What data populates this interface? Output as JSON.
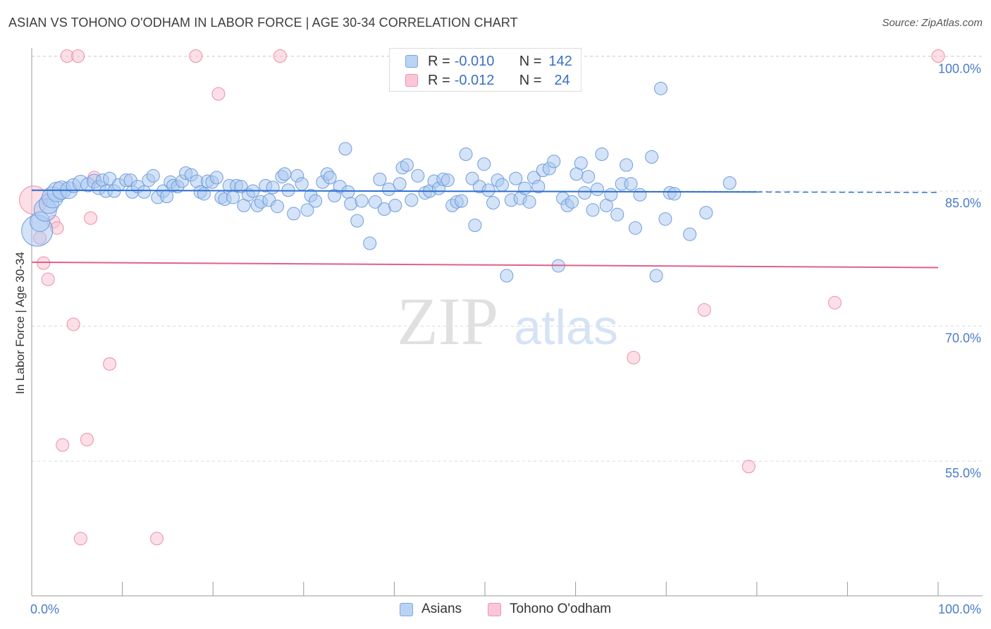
{
  "title": "ASIAN VS TOHONO O'ODHAM IN LABOR FORCE | AGE 30-34 CORRELATION CHART",
  "source": "Source: ZipAtlas.com",
  "watermark": {
    "zip": "ZIP",
    "atlas": "atlas"
  },
  "legend": [
    {
      "name": "Asians",
      "r_label": "R =",
      "r_value": "-0.010",
      "n_label": "N =",
      "n_value": "142",
      "fill": "#b9d3f5",
      "stroke": "#7aa6e0"
    },
    {
      "name": "Tohono O'odham",
      "r_label": "R =",
      "r_value": "-0.012",
      "n_label": "N =",
      "n_value": "24",
      "fill": "#fbc7d6",
      "stroke": "#ec93ae"
    }
  ],
  "colors": {
    "asian_fill": "#a9c8f0",
    "asian_stroke": "#6f9edc",
    "asian_line": "#2f6fd0",
    "tohono_fill": "#f9c4d3",
    "tohono_stroke": "#ea8fab",
    "tohono_line": "#e0608a",
    "axis_text": "#4a7cc9",
    "grid": "#d8d8d8"
  },
  "chart_data": {
    "type": "scatter",
    "title": "ASIAN VS TOHONO O'ODHAM IN LABOR FORCE | AGE 30-34 CORRELATION CHART",
    "xlabel": "",
    "ylabel": "In Labor Force | Age 30-34",
    "xlim": [
      0,
      100
    ],
    "ylim": [
      40,
      101.5
    ],
    "x_tick_labels": [
      {
        "value": 0,
        "label": "0.0%"
      },
      {
        "value": 100,
        "label": "100.0%"
      }
    ],
    "y_ticks": [
      {
        "value": 100,
        "label": "100.0%"
      },
      {
        "value": 85,
        "label": "85.0%"
      },
      {
        "value": 70,
        "label": "70.0%"
      },
      {
        "value": 55,
        "label": "55.0%"
      }
    ],
    "series": [
      {
        "name": "Asians",
        "trend": {
          "x": [
            0,
            80
          ],
          "y": [
            85.1,
            84.9
          ],
          "dashed_to": 100
        },
        "points": [
          [
            0.6,
            80.6,
            22
          ],
          [
            0.9,
            81.6,
            14
          ],
          [
            1.5,
            82.9,
            16
          ],
          [
            1.9,
            83.6,
            14
          ],
          [
            2.3,
            84.3,
            15
          ],
          [
            2.8,
            84.9,
            14
          ],
          [
            3.3,
            85.1,
            13
          ],
          [
            4.1,
            85.1,
            12
          ],
          [
            4.6,
            85.6,
            10
          ],
          [
            5.4,
            85.9,
            11
          ],
          [
            6.2,
            85.7,
            10
          ],
          [
            6.9,
            86.1,
            10
          ],
          [
            7.4,
            85.4,
            10
          ],
          [
            7.8,
            86.2,
            9
          ],
          [
            8.2,
            85.0,
            9
          ],
          [
            8.6,
            86.4,
            9
          ],
          [
            9.1,
            85.0,
            9
          ],
          [
            9.6,
            85.7,
            9
          ],
          [
            10.4,
            86.2,
            9
          ],
          [
            10.9,
            86.2,
            9
          ],
          [
            11.1,
            84.9,
            9
          ],
          [
            11.7,
            85.5,
            9
          ],
          [
            12.4,
            84.9,
            9
          ],
          [
            12.9,
            86.2,
            9
          ],
          [
            13.4,
            86.7,
            9
          ],
          [
            13.9,
            84.3,
            9
          ],
          [
            14.5,
            85.0,
            9
          ],
          [
            14.9,
            84.4,
            9
          ],
          [
            15.3,
            86.0,
            9
          ],
          [
            15.6,
            85.6,
            9
          ],
          [
            16.1,
            85.5,
            9
          ],
          [
            16.6,
            86.1,
            9
          ],
          [
            17.0,
            87.0,
            9
          ],
          [
            17.6,
            86.8,
            9
          ],
          [
            18.2,
            86.1,
            9
          ],
          [
            18.6,
            84.9,
            9
          ],
          [
            19.0,
            84.7,
            9
          ],
          [
            19.4,
            86.1,
            9
          ],
          [
            19.9,
            86.0,
            9
          ],
          [
            20.4,
            86.5,
            9
          ],
          [
            20.9,
            84.3,
            9
          ],
          [
            21.3,
            84.1,
            9
          ],
          [
            21.8,
            85.6,
            9
          ],
          [
            22.2,
            84.3,
            9
          ],
          [
            22.6,
            85.6,
            9
          ],
          [
            23.1,
            85.5,
            9
          ],
          [
            23.4,
            83.4,
            9
          ],
          [
            23.9,
            84.6,
            9
          ],
          [
            24.4,
            85.0,
            9
          ],
          [
            24.9,
            83.4,
            9
          ],
          [
            25.3,
            83.8,
            9
          ],
          [
            25.8,
            85.6,
            9
          ],
          [
            26.2,
            84.0,
            9
          ],
          [
            26.6,
            85.4,
            9
          ],
          [
            27.1,
            83.3,
            9
          ],
          [
            27.6,
            86.6,
            9
          ],
          [
            27.9,
            86.9,
            9
          ],
          [
            28.3,
            85.1,
            9
          ],
          [
            28.9,
            82.5,
            9
          ],
          [
            29.3,
            86.7,
            9
          ],
          [
            29.8,
            85.8,
            9
          ],
          [
            30.4,
            82.9,
            9
          ],
          [
            30.8,
            84.5,
            9
          ],
          [
            31.3,
            83.9,
            9
          ],
          [
            32.1,
            86.0,
            9
          ],
          [
            32.6,
            86.9,
            9
          ],
          [
            32.9,
            86.5,
            9
          ],
          [
            33.4,
            84.5,
            9
          ],
          [
            34.0,
            85.5,
            9
          ],
          [
            34.9,
            84.9,
            9
          ],
          [
            35.2,
            83.6,
            9
          ],
          [
            35.9,
            81.7,
            9
          ],
          [
            36.4,
            83.9,
            9
          ],
          [
            37.3,
            79.2,
            9
          ],
          [
            37.9,
            83.8,
            9
          ],
          [
            38.4,
            86.3,
            9
          ],
          [
            38.9,
            83.0,
            9
          ],
          [
            39.4,
            85.2,
            9
          ],
          [
            40.1,
            83.4,
            9
          ],
          [
            40.6,
            85.8,
            9
          ],
          [
            40.9,
            87.6,
            9
          ],
          [
            41.4,
            87.9,
            9
          ],
          [
            41.9,
            84.0,
            9
          ],
          [
            42.6,
            86.7,
            9
          ],
          [
            43.4,
            84.8,
            9
          ],
          [
            43.9,
            85.0,
            9
          ],
          [
            44.4,
            86.1,
            9
          ],
          [
            44.9,
            85.3,
            9
          ],
          [
            45.4,
            86.3,
            9
          ],
          [
            45.9,
            86.2,
            9
          ],
          [
            46.4,
            83.4,
            9
          ],
          [
            46.9,
            83.8,
            9
          ],
          [
            47.4,
            83.9,
            9
          ],
          [
            47.9,
            89.1,
            9
          ],
          [
            48.6,
            86.4,
            9
          ],
          [
            48.9,
            81.2,
            9
          ],
          [
            49.4,
            85.5,
            9
          ],
          [
            49.9,
            88.0,
            9
          ],
          [
            50.4,
            85.1,
            9
          ],
          [
            50.9,
            83.7,
            9
          ],
          [
            51.4,
            86.2,
            9
          ],
          [
            51.9,
            85.7,
            9
          ],
          [
            52.4,
            75.6,
            9
          ],
          [
            52.9,
            84.0,
            9
          ],
          [
            53.4,
            86.4,
            9
          ],
          [
            53.9,
            84.2,
            9
          ],
          [
            54.4,
            85.3,
            9
          ],
          [
            54.9,
            83.8,
            9
          ],
          [
            55.4,
            86.5,
            9
          ],
          [
            55.9,
            85.5,
            9
          ],
          [
            56.4,
            87.3,
            9
          ],
          [
            57.1,
            87.5,
            9
          ],
          [
            57.6,
            88.3,
            9
          ],
          [
            58.1,
            76.7,
            9
          ],
          [
            58.6,
            84.2,
            9
          ],
          [
            59.1,
            83.4,
            9
          ],
          [
            59.6,
            83.8,
            9
          ],
          [
            60.1,
            86.9,
            9
          ],
          [
            60.6,
            88.1,
            9
          ],
          [
            61.0,
            84.8,
            9
          ],
          [
            61.4,
            86.6,
            9
          ],
          [
            61.9,
            82.9,
            9
          ],
          [
            62.4,
            85.2,
            9
          ],
          [
            62.9,
            89.1,
            9
          ],
          [
            63.4,
            83.4,
            9
          ],
          [
            63.9,
            84.6,
            9
          ],
          [
            64.6,
            82.4,
            9
          ],
          [
            65.1,
            85.8,
            9
          ],
          [
            65.6,
            87.9,
            9
          ],
          [
            66.1,
            85.8,
            9
          ],
          [
            66.6,
            80.9,
            9
          ],
          [
            67.1,
            84.6,
            9
          ],
          [
            68.4,
            88.8,
            9
          ],
          [
            68.9,
            75.6,
            9
          ],
          [
            69.4,
            96.4,
            9
          ],
          [
            69.9,
            81.9,
            9
          ],
          [
            70.4,
            84.8,
            9
          ],
          [
            70.9,
            84.7,
            9
          ],
          [
            72.6,
            80.2,
            9
          ],
          [
            74.4,
            82.6,
            9
          ],
          [
            77.0,
            85.9,
            9
          ],
          [
            34.6,
            89.7,
            9
          ]
        ]
      },
      {
        "name": "Tohono O'odham",
        "trend": {
          "x": [
            0,
            100
          ],
          "y": [
            77.1,
            76.5
          ]
        },
        "points": [
          [
            0.2,
            84.0,
            20
          ],
          [
            0.9,
            79.8,
            9
          ],
          [
            1.3,
            77.0,
            9
          ],
          [
            1.8,
            75.2,
            9
          ],
          [
            2.4,
            81.6,
            9
          ],
          [
            2.8,
            80.9,
            9
          ],
          [
            3.4,
            56.8,
            9
          ],
          [
            3.9,
            100.0,
            9
          ],
          [
            4.6,
            70.2,
            9
          ],
          [
            5.1,
            100.0,
            9
          ],
          [
            5.4,
            46.4,
            9
          ],
          [
            6.1,
            57.4,
            9
          ],
          [
            6.5,
            82.0,
            9
          ],
          [
            6.9,
            86.5,
            9
          ],
          [
            8.6,
            65.8,
            9
          ],
          [
            13.8,
            46.4,
            9
          ],
          [
            18.1,
            100.0,
            9
          ],
          [
            20.6,
            95.8,
            9
          ],
          [
            27.4,
            100.0,
            9
          ],
          [
            66.4,
            66.5,
            9
          ],
          [
            74.2,
            71.8,
            9
          ],
          [
            79.1,
            54.4,
            9
          ],
          [
            88.6,
            72.6,
            9
          ],
          [
            100.0,
            100.0,
            9
          ]
        ]
      }
    ]
  }
}
